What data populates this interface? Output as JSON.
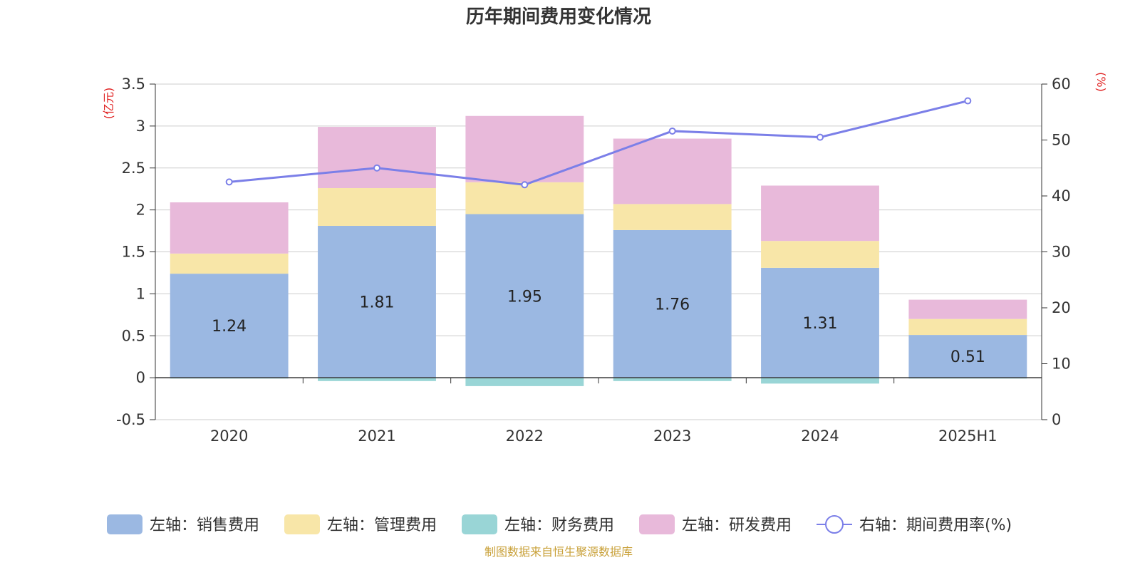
{
  "chart_data": {
    "type": "bar",
    "title": "历年期间费用变化情况",
    "categories": [
      "2020",
      "2021",
      "2022",
      "2023",
      "2024",
      "2025H1"
    ],
    "left_axis": {
      "unit": "(亿元)",
      "ylim": [
        -0.5,
        3.5
      ],
      "ticks": [
        "-0.5",
        "0",
        "0.5",
        "1",
        "1.5",
        "2",
        "2.5",
        "3",
        "3.5"
      ]
    },
    "right_axis": {
      "unit": "(%)",
      "ylim": [
        0,
        60
      ],
      "ticks": [
        "0",
        "10",
        "20",
        "30",
        "40",
        "50",
        "60"
      ]
    },
    "series": [
      {
        "name": "左轴：销售费用",
        "type": "bar",
        "stack": "pos",
        "color": "#9bb8e2",
        "values": [
          1.24,
          1.81,
          1.95,
          1.76,
          1.31,
          0.51
        ],
        "show_labels": true
      },
      {
        "name": "左轴：管理费用",
        "type": "bar",
        "stack": "pos",
        "color": "#f8e6a8",
        "values": [
          0.24,
          0.45,
          0.38,
          0.31,
          0.32,
          0.19
        ]
      },
      {
        "name": "左轴：财务费用",
        "type": "bar",
        "stack": "neg",
        "color": "#99d5d6",
        "values": [
          -0.01,
          -0.04,
          -0.1,
          -0.04,
          -0.07,
          -0.01
        ]
      },
      {
        "name": "左轴：研发费用",
        "type": "bar",
        "stack": "pos",
        "color": "#e8b9da",
        "values": [
          0.61,
          0.73,
          0.79,
          0.78,
          0.66,
          0.23
        ]
      },
      {
        "name": "右轴：期间费用率(%)",
        "type": "line",
        "axis": "right",
        "color": "#7b7fe8",
        "values": [
          42.5,
          45.0,
          42.0,
          51.6,
          50.5,
          57.0
        ]
      }
    ],
    "grid": true,
    "legend_position": "bottom",
    "source_note": "制图数据来自恒生聚源数据库"
  }
}
